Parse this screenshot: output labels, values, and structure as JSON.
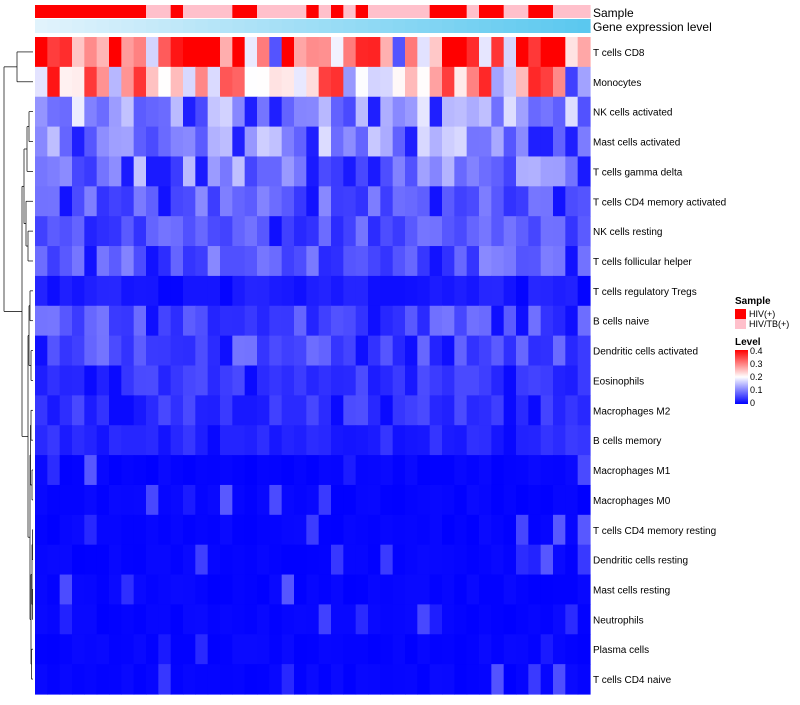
{
  "chart_data": {
    "type": "heatmap",
    "annotation_labels": [
      "Sample",
      "Gene expression level"
    ],
    "rows": [
      "T cells CD8",
      "Monocytes",
      "NK cells activated",
      "Mast cells activated",
      "T cells gamma delta",
      "T cells CD4 memory activated",
      "NK cells resting",
      "T cells follicular helper",
      "T cells regulatory  Tregs",
      "B cells naive",
      "Dendritic cells activated",
      "Eosinophils",
      "Macrophages M2",
      "B cells memory",
      "Macrophages M1",
      "Macrophages M0",
      "T cells CD4 memory resting",
      "Dendritic cells resting",
      "Mast cells resting",
      "Neutrophils",
      "Plasma cells",
      "T cells CD4 naive"
    ],
    "num_columns": 45,
    "sample_groups": "HHHHHHHHHTTHTTTTHHTTTTHTHTHTTTTTHHHTHHTTHHTTT",
    "sample_legend": {
      "title": "Sample",
      "items": [
        {
          "label": "HIV(+)",
          "color": "#ff0000"
        },
        {
          "label": "HIV/TB(+)",
          "color": "#ffc0cb"
        }
      ]
    },
    "level_legend": {
      "title": "Level",
      "min": 0,
      "max": 0.4,
      "ticks": [
        "0.4",
        "0.3",
        "0.2",
        "0.1",
        "0"
      ],
      "colors": [
        "#0000ff",
        "#ffffff",
        "#ff0000"
      ]
    },
    "value_range": [
      0,
      0.4
    ],
    "row_means": [
      0.33,
      0.25,
      0.12,
      0.12,
      0.1,
      0.07,
      0.06,
      0.07,
      0.02,
      0.06,
      0.06,
      0.04,
      0.04,
      0.03,
      0.015,
      0.015,
      0.008,
      0.008,
      0.006,
      0.004,
      0.01,
      0.005
    ]
  },
  "colors": {
    "low": "#0000ff",
    "mid": "#ffffff",
    "high": "#ff0000",
    "gene_bar": "#5bc8ef",
    "dendrogram": "#000000"
  }
}
